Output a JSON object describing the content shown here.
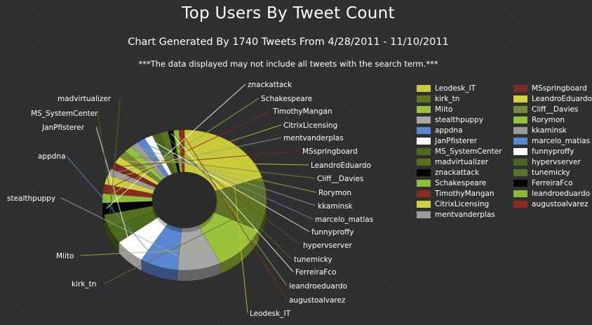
{
  "chart_data": {
    "type": "pie",
    "title": "Top Users By Tweet Count",
    "subtitle": "Chart Generated By 1740 Tweets From 4/28/2011 - 11/10/2011",
    "note": "***The data displayed may not include all tweets with the search term.***",
    "legend_position": "right",
    "slices": [
      {
        "name": "Leodesk_IT",
        "value": 37,
        "color": "#c9c93b"
      },
      {
        "name": "kirk_tn",
        "value": 23,
        "color": "#5e7326"
      },
      {
        "name": "Miito",
        "value": 20,
        "color": "#9ac23c"
      },
      {
        "name": "stealthpuppy",
        "value": 16,
        "color": "#a7a7a7"
      },
      {
        "name": "appdna",
        "value": 14,
        "color": "#5b86d1"
      },
      {
        "name": "JanPfisterer",
        "value": 11,
        "color": "#ffffff"
      },
      {
        "name": "MS_SystemCenter",
        "value": 7,
        "color": "#4b6b1c"
      },
      {
        "name": "madvirtualizer",
        "value": 6,
        "color": "#56701f"
      },
      {
        "name": "znackattack",
        "value": 5,
        "color": "#050505"
      },
      {
        "name": "Schakespeare",
        "value": 4,
        "color": "#8fbf3a"
      },
      {
        "name": "TimothyMangan",
        "value": 4,
        "color": "#8a2a20"
      },
      {
        "name": "CitrixLicensing",
        "value": 4,
        "color": "#cfcf45"
      },
      {
        "name": "mentvanderplas",
        "value": 3,
        "color": "#9a9a9a"
      },
      {
        "name": "MSspringboard",
        "value": 3,
        "color": "#7a2a20"
      },
      {
        "name": "LeandroEduardo",
        "value": 3,
        "color": "#d2d23f"
      },
      {
        "name": "Cliff__Davies",
        "value": 3,
        "color": "#748a3a"
      },
      {
        "name": "Rorymon",
        "value": 3,
        "color": "#94c23c"
      },
      {
        "name": "kkaminsk",
        "value": 3,
        "color": "#9a9a9a"
      },
      {
        "name": "marcelo_matias",
        "value": 3,
        "color": "#5b86d1"
      },
      {
        "name": "funnyproffy",
        "value": 3,
        "color": "#ffffff"
      },
      {
        "name": "hypervserver",
        "value": 3,
        "color": "#4a6620"
      },
      {
        "name": "tunemicky",
        "value": 3,
        "color": "#5a7326"
      },
      {
        "name": "FerreiraFco",
        "value": 2,
        "color": "#060606"
      },
      {
        "name": "leandroeduardo",
        "value": 2,
        "color": "#8ab83a"
      },
      {
        "name": "augustoalvarez",
        "value": 2,
        "color": "#8f2a20"
      }
    ]
  }
}
